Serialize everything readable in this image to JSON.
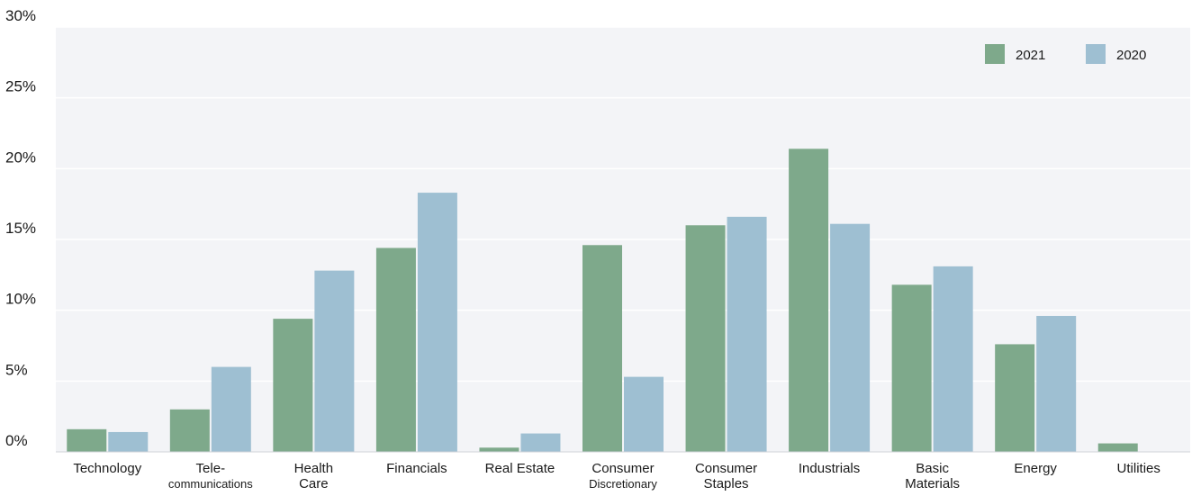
{
  "chart_data": {
    "type": "bar",
    "title": "",
    "xlabel": "",
    "ylabel": "",
    "ylim": [
      0,
      30
    ],
    "yticks": [
      "0%",
      "5%",
      "10%",
      "15%",
      "20%",
      "25%",
      "30%"
    ],
    "ytick_values": [
      0,
      5,
      10,
      15,
      20,
      25,
      30
    ],
    "grid": true,
    "legend_position": "top-right",
    "categories": [
      [
        "Technology"
      ],
      [
        "Tele-",
        "communications"
      ],
      [
        "Health",
        "Care"
      ],
      [
        "Financials"
      ],
      [
        "Real Estate"
      ],
      [
        "Consumer",
        "Discretionary"
      ],
      [
        "Consumer",
        "Staples"
      ],
      [
        "Industrials"
      ],
      [
        "Basic",
        "Materials"
      ],
      [
        "Energy"
      ],
      [
        "Utilities"
      ]
    ],
    "series": [
      {
        "name": "2021",
        "color": "#7ea98b",
        "values": [
          1.6,
          3.0,
          9.4,
          14.4,
          0.3,
          14.6,
          16.0,
          21.4,
          11.8,
          7.6,
          0.6
        ]
      },
      {
        "name": "2020",
        "color": "#9ebfd2",
        "values": [
          1.4,
          6.0,
          12.8,
          18.3,
          1.3,
          5.3,
          16.6,
          16.1,
          13.1,
          9.6,
          0.0
        ]
      }
    ],
    "background_color": "#f3f4f7",
    "grid_color": "#ffffff"
  }
}
